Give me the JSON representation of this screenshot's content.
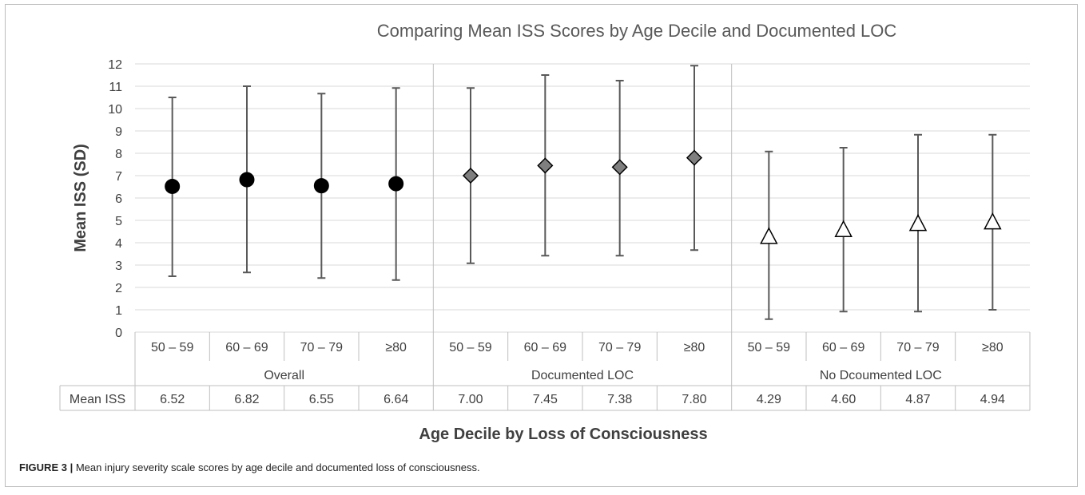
{
  "chart_data": {
    "type": "scatter",
    "title": "Comparing Mean ISS Scores by Age Decile and Documented LOC",
    "ylabel": "Mean ISS (SD)",
    "xlabel": "Age Decile by Loss of Consciousness",
    "ylim": [
      0,
      12
    ],
    "yticks": [
      0,
      1,
      2,
      3,
      4,
      5,
      6,
      7,
      8,
      9,
      10,
      11,
      12
    ],
    "grid": true,
    "table_row_label": "Mean ISS",
    "groups": [
      {
        "name": "Overall",
        "marker": "circle",
        "color": "#000000",
        "categories": [
          "50 – 59",
          "60 – 69",
          "70 – 79",
          "≥80"
        ],
        "values": [
          6.52,
          6.82,
          6.55,
          6.64
        ],
        "value_labels": [
          "6.52",
          "6.82",
          "6.55",
          "6.64"
        ],
        "error_low": [
          2.5,
          2.67,
          2.42,
          2.33
        ],
        "error_high": [
          10.5,
          11.0,
          10.67,
          10.92
        ]
      },
      {
        "name": "Documented LOC",
        "marker": "diamond",
        "color": "#7f7f7f",
        "categories": [
          "50 – 59",
          "60 – 69",
          "70 – 79",
          "≥80"
        ],
        "values": [
          7.0,
          7.45,
          7.38,
          7.8
        ],
        "value_labels": [
          "7.00",
          "7.45",
          "7.38",
          "7.80"
        ],
        "error_low": [
          3.08,
          3.42,
          3.42,
          3.67
        ],
        "error_high": [
          10.92,
          11.5,
          11.25,
          11.92
        ]
      },
      {
        "name": "No Dcoumented LOC",
        "marker": "triangle",
        "color": "#ffffff",
        "categories": [
          "50 – 59",
          "60 – 69",
          "70 – 79",
          "≥80"
        ],
        "values": [
          4.29,
          4.6,
          4.87,
          4.94
        ],
        "value_labels": [
          "4.29",
          "4.60",
          "4.87",
          "4.94"
        ],
        "error_low": [
          0.58,
          0.92,
          0.92,
          1.0
        ],
        "error_high": [
          8.08,
          8.25,
          8.83,
          8.83
        ]
      }
    ]
  },
  "caption": {
    "label": "FIGURE 3 |",
    "text": " Mean injury severity scale scores by age decile and documented loss of consciousness."
  }
}
